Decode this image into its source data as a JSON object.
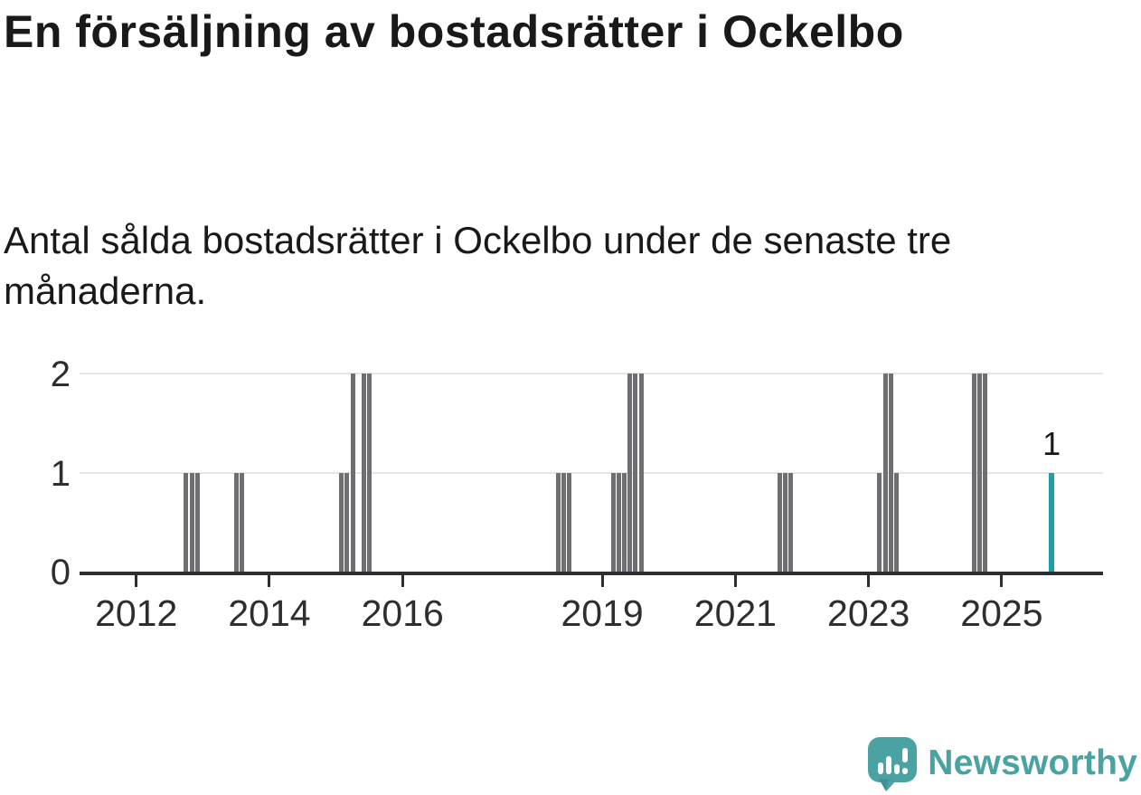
{
  "title": "En försäljning av bostadsrätter i Ockelbo",
  "subtitle": "Antal sålda bostadsrätter i Ockelbo under de senaste tre månaderna.",
  "logo": {
    "text": "Newsworthy"
  },
  "colors": {
    "bar": "#6e6e73",
    "highlight": "#1aa0a5",
    "axis": "#2e2e31",
    "grid": "#e6e6e6",
    "text": "#1a1a1a",
    "logo_teal": "#4aa2a2",
    "logo_dark": "#3b9296"
  },
  "chart_data": {
    "type": "bar",
    "title": "En försäljning av bostadsrätter i Ockelbo",
    "subtitle": "Antal sålda bostadsrätter i Ockelbo under de senaste tre månaderna.",
    "xlabel": "",
    "ylabel": "",
    "ylim": [
      0,
      2
    ],
    "y_ticks": [
      0,
      1,
      2
    ],
    "x_ticks": [
      2012,
      2014,
      2016,
      2019,
      2021,
      2023,
      2025
    ],
    "grid": "horizontal",
    "legend": "none",
    "highlight_label": "1",
    "bars": [
      {
        "month": "2012-10",
        "value": 1
      },
      {
        "month": "2012-11",
        "value": 1
      },
      {
        "month": "2012-12",
        "value": 1
      },
      {
        "month": "2013-07",
        "value": 1
      },
      {
        "month": "2013-08",
        "value": 1
      },
      {
        "month": "2015-02",
        "value": 1
      },
      {
        "month": "2015-03",
        "value": 1
      },
      {
        "month": "2015-04",
        "value": 2
      },
      {
        "month": "2015-06",
        "value": 2
      },
      {
        "month": "2015-07",
        "value": 2
      },
      {
        "month": "2018-05",
        "value": 1
      },
      {
        "month": "2018-06",
        "value": 1
      },
      {
        "month": "2018-07",
        "value": 1
      },
      {
        "month": "2019-03",
        "value": 1
      },
      {
        "month": "2019-04",
        "value": 1
      },
      {
        "month": "2019-05",
        "value": 1
      },
      {
        "month": "2019-06",
        "value": 2
      },
      {
        "month": "2019-07",
        "value": 2
      },
      {
        "month": "2019-08",
        "value": 2
      },
      {
        "month": "2021-09",
        "value": 1
      },
      {
        "month": "2021-10",
        "value": 1
      },
      {
        "month": "2021-11",
        "value": 1
      },
      {
        "month": "2023-03",
        "value": 1
      },
      {
        "month": "2023-04",
        "value": 2
      },
      {
        "month": "2023-05",
        "value": 2
      },
      {
        "month": "2023-06",
        "value": 1
      },
      {
        "month": "2024-08",
        "value": 2
      },
      {
        "month": "2024-09",
        "value": 2
      },
      {
        "month": "2024-10",
        "value": 2
      },
      {
        "month": "2025-10",
        "value": 1,
        "highlight": true,
        "label": "1"
      }
    ]
  }
}
